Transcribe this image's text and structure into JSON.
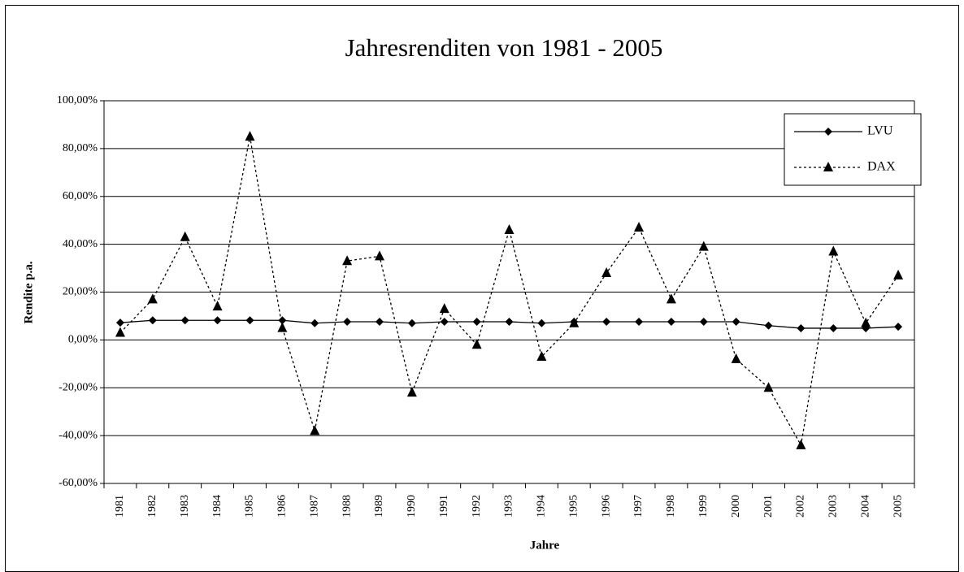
{
  "chart_data": {
    "type": "line",
    "title": "Jahresrenditen von 1981 - 2005",
    "x_label": "Jahre",
    "y_label": "Rendite p.a.",
    "categories": [
      "1981",
      "1982",
      "1983",
      "1984",
      "1985",
      "1986",
      "1987",
      "1988",
      "1989",
      "1990",
      "1991",
      "1992",
      "1993",
      "1994",
      "1995",
      "1996",
      "1997",
      "1998",
      "1999",
      "2000",
      "2001",
      "2002",
      "2003",
      "2004",
      "2005"
    ],
    "series": [
      {
        "name": "LVU",
        "color": "#000000",
        "line_style": "solid",
        "marker": "diamond",
        "values": [
          7.2,
          8.2,
          8.2,
          8.2,
          8.2,
          8.2,
          7.0,
          7.6,
          7.6,
          7.0,
          7.6,
          7.6,
          7.6,
          7.0,
          7.6,
          7.6,
          7.6,
          7.6,
          7.6,
          7.6,
          6.0,
          4.9,
          4.9,
          4.9,
          5.5
        ]
      },
      {
        "name": "DAX",
        "color": "#000000",
        "line_style": "dotted",
        "marker": "triangle",
        "values": [
          3,
          17,
          43,
          14,
          85,
          5,
          -38,
          33,
          35,
          -22,
          13,
          -2,
          46,
          -7,
          7,
          28,
          47,
          17,
          39,
          -8,
          -20,
          -44,
          37,
          7,
          27
        ]
      }
    ],
    "ylim": [
      -60,
      100
    ],
    "yticks": [
      {
        "value": -60,
        "label": "-60,00%"
      },
      {
        "value": -40,
        "label": "-40,00%"
      },
      {
        "value": -20,
        "label": "-20,00%"
      },
      {
        "value": 0,
        "label": "0,00%"
      },
      {
        "value": 20,
        "label": "20,00%"
      },
      {
        "value": 40,
        "label": "40,00%"
      },
      {
        "value": 60,
        "label": "60,00%"
      },
      {
        "value": 80,
        "label": "80,00%"
      },
      {
        "value": 100,
        "label": "100,00%"
      }
    ],
    "grid": true,
    "legend": "top-right"
  }
}
